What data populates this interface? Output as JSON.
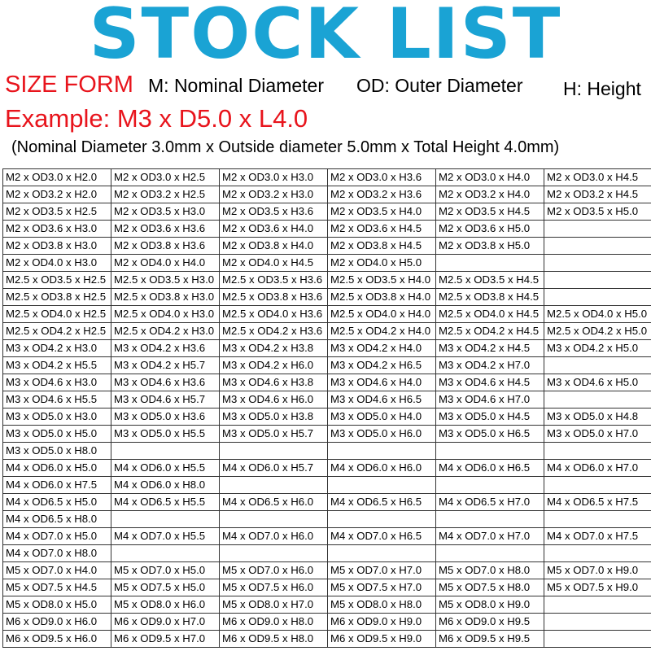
{
  "title": "STOCK LIST",
  "size_form": {
    "label": "SIZE FORM",
    "m": "M: Nominal Diameter",
    "od": "OD:  Outer Diameter",
    "h": "H: Height"
  },
  "example": "Example: M3 x D5.0 x L4.0",
  "example_note": "(Nominal Diameter 3.0mm x Outside diameter 5.0mm x Total Height 4.0mm)",
  "colors": {
    "title": "#1aa3d4",
    "highlight": "#e8141c"
  },
  "table_rows": [
    [
      "M2 x OD3.0 x H2.0",
      "M2 x OD3.0 x H2.5",
      "M2 x OD3.0 x H3.0",
      "M2 x OD3.0 x H3.6",
      "M2 x OD3.0 x H4.0",
      "M2 x OD3.0 x H4.5"
    ],
    [
      "M2 x OD3.2 x H2.0",
      "M2 x OD3.2 x H2.5",
      "M2 x OD3.2 x H3.0",
      "M2 x OD3.2 x H3.6",
      "M2 x OD3.2 x H4.0",
      "M2 x OD3.2 x H4.5"
    ],
    [
      "M2 x OD3.5 x H2.5",
      "M2 x OD3.5 x H3.0",
      "M2 x OD3.5 x H3.6",
      "M2 x OD3.5 x H4.0",
      "M2 x OD3.5 x H4.5",
      "M2 x OD3.5 x H5.0"
    ],
    [
      "M2 x OD3.6 x H3.0",
      "M2 x OD3.6 x H3.6",
      "M2 x OD3.6 x H4.0",
      "M2 x OD3.6 x H4.5",
      "M2 x OD3.6 x H5.0",
      ""
    ],
    [
      "M2 x OD3.8 x H3.0",
      "M2 x OD3.8 x H3.6",
      "M2 x OD3.8 x H4.0",
      "M2 x OD3.8 x H4.5",
      "M2 x OD3.8 x H5.0",
      ""
    ],
    [
      "M2 x OD4.0 x H3.0",
      "M2 x OD4.0 x H4.0",
      "M2 x OD4.0 x H4.5",
      "M2 x OD4.0 x H5.0",
      "",
      ""
    ],
    [
      "M2.5 x OD3.5 x H2.5",
      "M2.5 x OD3.5 x H3.0",
      "M2.5 x OD3.5 x H3.6",
      "M2.5 x OD3.5 x H4.0",
      "M2.5 x OD3.5 x H4.5",
      ""
    ],
    [
      "M2.5 x OD3.8 x H2.5",
      "M2.5 x OD3.8 x H3.0",
      "M2.5 x OD3.8 x H3.6",
      "M2.5 x OD3.8 x H4.0",
      "M2.5 x OD3.8 x H4.5",
      ""
    ],
    [
      "M2.5 x OD4.0 x H2.5",
      "M2.5 x OD4.0 x H3.0",
      "M2.5 x OD4.0 x H3.6",
      "M2.5 x OD4.0 x H4.0",
      "M2.5 x OD4.0 x H4.5",
      "M2.5 x OD4.0 x H5.0"
    ],
    [
      "M2.5 x OD4.2 x H2.5",
      "M2.5 x OD4.2 x H3.0",
      "M2.5 x OD4.2 x H3.6",
      "M2.5 x OD4.2 x H4.0",
      "M2.5 x OD4.2 x H4.5",
      "M2.5 x OD4.2 x H5.0"
    ],
    [
      "M3 x OD4.2 x H3.0",
      "M3 x OD4.2 x H3.6",
      "M3 x OD4.2 x H3.8",
      "M3 x OD4.2 x H4.0",
      "M3 x OD4.2 x H4.5",
      "M3 x OD4.2 x H5.0"
    ],
    [
      "M3 x OD4.2 x H5.5",
      "M3 x OD4.2 x H5.7",
      "M3 x OD4.2 x H6.0",
      "M3 x OD4.2 x H6.5",
      "M3 x OD4.2 x H7.0",
      ""
    ],
    [
      "M3 x OD4.6 x H3.0",
      "M3 x OD4.6 x H3.6",
      "M3 x OD4.6 x H3.8",
      "M3 x OD4.6 x H4.0",
      "M3 x OD4.6 x H4.5",
      "M3 x OD4.6 x H5.0"
    ],
    [
      "M3 x OD4.6 x H5.5",
      "M3 x OD4.6 x H5.7",
      "M3 x OD4.6 x H6.0",
      "M3 x OD4.6 x H6.5",
      "M3 x OD4.6 x H7.0",
      ""
    ],
    [
      "M3 x OD5.0 x H3.0",
      "M3 x OD5.0 x H3.6",
      "M3 x OD5.0 x H3.8",
      "M3 x OD5.0 x H4.0",
      "M3 x OD5.0 x H4.5",
      "M3 x OD5.0 x H4.8"
    ],
    [
      "M3 x OD5.0 x H5.0",
      "M3 x OD5.0 x H5.5",
      "M3 x OD5.0 x H5.7",
      "M3 x OD5.0 x H6.0",
      "M3 x OD5.0 x H6.5",
      "M3 x OD5.0 x H7.0"
    ],
    [
      "M3 x OD5.0 x H8.0",
      "",
      "",
      "",
      "",
      ""
    ],
    [
      "M4 x OD6.0 x H5.0",
      "M4 x OD6.0 x H5.5",
      "M4 x OD6.0 x H5.7",
      "M4 x OD6.0 x H6.0",
      "M4 x OD6.0 x H6.5",
      "M4 x OD6.0 x H7.0"
    ],
    [
      "M4 x OD6.0 x H7.5",
      "M4 x OD6.0 x H8.0",
      "",
      "",
      "",
      ""
    ],
    [
      "M4 x OD6.5 x H5.0",
      "M4 x OD6.5 x H5.5",
      "M4 x OD6.5 x H6.0",
      "M4 x OD6.5 x H6.5",
      "M4 x OD6.5 x H7.0",
      "M4 x OD6.5 x H7.5"
    ],
    [
      "M4 x OD6.5 x H8.0",
      "",
      "",
      "",
      "",
      ""
    ],
    [
      "M4 x OD7.0 x H5.0",
      "M4 x OD7.0 x H5.5",
      "M4 x OD7.0 x H6.0",
      "M4 x OD7.0 x H6.5",
      "M4 x OD7.0 x H7.0",
      "M4 x OD7.0 x H7.5"
    ],
    [
      "M4 x OD7.0 x H8.0",
      "",
      "",
      "",
      "",
      ""
    ],
    [
      "M5 x OD7.0 x H4.0",
      "M5 x OD7.0 x H5.0",
      "M5 x OD7.0 x H6.0",
      "M5 x OD7.0 x H7.0",
      "M5 x OD7.0 x H8.0",
      "M5 x OD7.0 x H9.0"
    ],
    [
      "M5 x OD7.5 x H4.5",
      "M5 x OD7.5 x H5.0",
      "M5 x OD7.5 x H6.0",
      "M5 x OD7.5 x H7.0",
      "M5 x OD7.5 x H8.0",
      "M5 x OD7.5 x H9.0"
    ],
    [
      "M5 x OD8.0 x H5.0",
      "M5 x OD8.0 x H6.0",
      "M5 x OD8.0 x H7.0",
      "M5 x OD8.0 x H8.0",
      "M5 x OD8.0 x H9.0",
      ""
    ],
    [
      "M6 x OD9.0 x H6.0",
      "M6 x OD9.0 x H7.0",
      "M6 x OD9.0 x H8.0",
      "M6 x OD9.0 x H9.0",
      "M6 x OD9.0 x H9.5",
      ""
    ],
    [
      "M6 x OD9.5 x H6.0",
      "M6 x OD9.5 x H7.0",
      "M6 x OD9.5 x H8.0",
      "M6 x OD9.5 x H9.0",
      "M6 x OD9.5 x H9.5",
      ""
    ]
  ]
}
